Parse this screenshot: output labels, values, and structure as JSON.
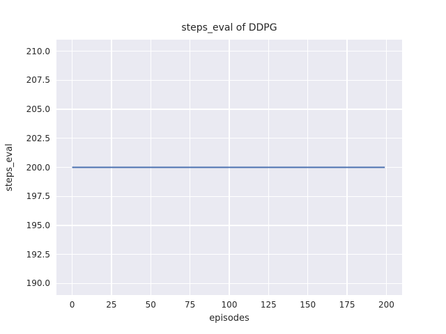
{
  "chart_data": {
    "type": "line",
    "title": "steps_eval of DDPG",
    "xlabel": "episodes",
    "ylabel": "steps_eval",
    "x_tick_values": [
      0,
      25,
      50,
      75,
      100,
      125,
      150,
      175,
      200
    ],
    "x_tick_labels": [
      "0",
      "25",
      "50",
      "75",
      "100",
      "125",
      "150",
      "175",
      "200"
    ],
    "y_tick_values": [
      190.0,
      192.5,
      195.0,
      197.5,
      200.0,
      202.5,
      205.0,
      207.5,
      210.0
    ],
    "y_tick_labels": [
      "190.0",
      "192.5",
      "195.0",
      "197.5",
      "200.0",
      "202.5",
      "205.0",
      "207.5",
      "210.0"
    ],
    "xlim": [
      -10,
      210
    ],
    "ylim": [
      189,
      211
    ],
    "grid": true,
    "legend": false,
    "series": [
      {
        "name": "steps_eval",
        "color": "#4c72b0",
        "linewidth": 2,
        "x": [
          0,
          199
        ],
        "y": [
          200,
          200
        ]
      }
    ],
    "colors": {
      "figure_background": "#ffffff",
      "axes_background": "#eaeaf2",
      "gridline": "#ffffff",
      "text": "#262626"
    }
  }
}
